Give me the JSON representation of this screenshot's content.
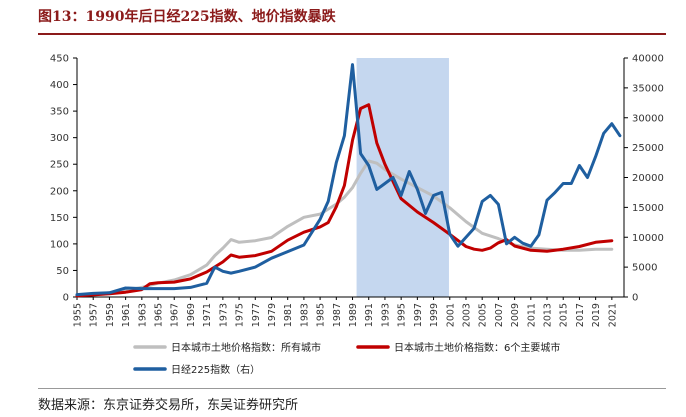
{
  "header": {
    "title": "图13：1990年后日经225指数、地价指数暴跌"
  },
  "footer": {
    "source": "数据来源：东京证券交易所，东吴证券研究所"
  },
  "colors": {
    "all_cities": "#bfbfbf",
    "six_cities": "#c00000",
    "nikkei": "#1f5fa0",
    "highlight": "#c5d7ef",
    "title": "#8b1a1a"
  },
  "chart_data": {
    "type": "line",
    "title": "1990年后日经225指数、地价指数暴跌",
    "highlight_range": [
      1989.5,
      2000.9
    ],
    "left_axis": {
      "ylim": [
        0,
        450
      ],
      "ticks": [
        0,
        50,
        100,
        150,
        200,
        250,
        300,
        350,
        400,
        450
      ]
    },
    "right_axis": {
      "ylim": [
        0,
        40000
      ],
      "ticks": [
        0,
        5000,
        10000,
        15000,
        20000,
        25000,
        30000,
        35000,
        40000
      ]
    },
    "x_ticks": [
      "1955",
      "1957",
      "1959",
      "1961",
      "1963",
      "1965",
      "1967",
      "1969",
      "1971",
      "1973",
      "1975",
      "1977",
      "1979",
      "1981",
      "1983",
      "1985",
      "1987",
      "1989",
      "1991",
      "1993",
      "1995",
      "1997",
      "1999",
      "2001",
      "2003",
      "2005",
      "2007",
      "2009",
      "2011",
      "2013",
      "2015",
      "2017",
      "2019",
      "2021"
    ],
    "series": [
      {
        "name": "日本城市土地价格指数：所有城市",
        "axis": "left",
        "color_key": "all_cities",
        "x": [
          1955,
          1957,
          1959,
          1961,
          1963,
          1965,
          1967,
          1969,
          1971,
          1972,
          1973,
          1974,
          1975,
          1977,
          1979,
          1981,
          1983,
          1985,
          1987,
          1988,
          1989,
          1990,
          1991,
          1992,
          1993,
          1995,
          1997,
          1999,
          2001,
          2003,
          2005,
          2007,
          2009,
          2011,
          2013,
          2015,
          2017,
          2019,
          2021
        ],
        "values": [
          3,
          5,
          8,
          12,
          18,
          26,
          32,
          42,
          60,
          78,
          92,
          108,
          103,
          106,
          112,
          133,
          150,
          156,
          175,
          188,
          206,
          233,
          256,
          252,
          240,
          222,
          206,
          190,
          168,
          142,
          120,
          110,
          98,
          92,
          90,
          88,
          88,
          90,
          90
        ]
      },
      {
        "name": "日本城市土地价格指数：6个主要城市",
        "axis": "left",
        "color_key": "six_cities",
        "x": [
          1955,
          1957,
          1959,
          1961,
          1963,
          1964,
          1965,
          1967,
          1969,
          1971,
          1973,
          1974,
          1975,
          1977,
          1979,
          1981,
          1983,
          1985,
          1986,
          1987,
          1988,
          1989,
          1990,
          1991,
          1992,
          1993,
          1995,
          1997,
          1999,
          2001,
          2003,
          2004,
          2005,
          2006,
          2007,
          2008,
          2009,
          2011,
          2013,
          2015,
          2017,
          2019,
          2021
        ],
        "values": [
          2,
          4,
          6,
          9,
          14,
          25,
          27,
          28,
          34,
          47,
          66,
          79,
          75,
          78,
          86,
          107,
          122,
          132,
          140,
          170,
          210,
          295,
          355,
          362,
          290,
          250,
          185,
          160,
          140,
          118,
          95,
          90,
          88,
          92,
          102,
          108,
          96,
          88,
          86,
          90,
          95,
          103,
          106
        ]
      },
      {
        "name": "日经225指数（右）",
        "axis": "right",
        "color_key": "nikkei",
        "x": [
          1955,
          1957,
          1959,
          1961,
          1963,
          1965,
          1967,
          1969,
          1971,
          1972,
          1973,
          1974,
          1975,
          1977,
          1979,
          1981,
          1983,
          1985,
          1986,
          1987,
          1988,
          1989,
          1990,
          1991,
          1992,
          1993,
          1994,
          1995,
          1996,
          1997,
          1998,
          1999,
          2000,
          2001,
          2002,
          2003,
          2004,
          2005,
          2006,
          2007,
          2008,
          2009,
          2010,
          2011,
          2012,
          2013,
          2014,
          2015,
          2016,
          2017,
          2018,
          2019,
          2020,
          2021,
          2022
        ],
        "values": [
          400,
          600,
          700,
          1500,
          1400,
          1400,
          1400,
          1600,
          2300,
          5000,
          4300,
          4000,
          4300,
          5000,
          6500,
          7600,
          8700,
          13000,
          16000,
          22500,
          27000,
          38900,
          24000,
          22000,
          18000,
          19000,
          20000,
          17000,
          21000,
          18000,
          14000,
          17000,
          17500,
          10500,
          8500,
          10000,
          11500,
          16000,
          17000,
          15500,
          8900,
          10000,
          9000,
          8500,
          10400,
          16200,
          17500,
          19000,
          19000,
          22000,
          20000,
          23500,
          27400,
          29000,
          27000
        ]
      }
    ]
  }
}
